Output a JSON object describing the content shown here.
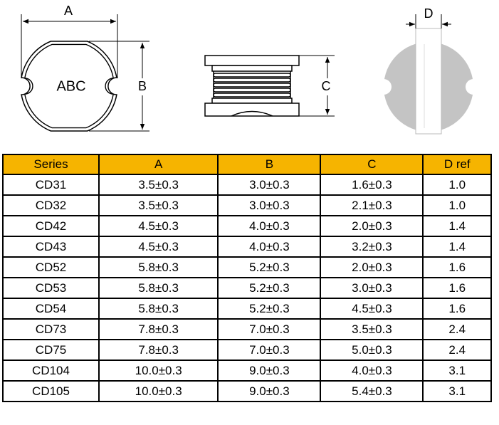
{
  "diagram": {
    "top_view": {
      "width_label": "A",
      "height_label": "B",
      "marking": "ABC"
    },
    "side_view": {
      "height_label": "C"
    },
    "bottom_view": {
      "width_label": "D"
    }
  },
  "table": {
    "header": [
      "Series",
      "A",
      "B",
      "C",
      "D ref"
    ],
    "rows": [
      [
        "CD31",
        "3.5±0.3",
        "3.0±0.3",
        "1.6±0.3",
        "1.0"
      ],
      [
        "CD32",
        "3.5±0.3",
        "3.0±0.3",
        "2.1±0.3",
        "1.0"
      ],
      [
        "CD42",
        "4.5±0.3",
        "4.0±0.3",
        "2.0±0.3",
        "1.4"
      ],
      [
        "CD43",
        "4.5±0.3",
        "4.0±0.3",
        "3.2±0.3",
        "1.4"
      ],
      [
        "CD52",
        "5.8±0.3",
        "5.2±0.3",
        "2.0±0.3",
        "1.6"
      ],
      [
        "CD53",
        "5.8±0.3",
        "5.2±0.3",
        "3.0±0.3",
        "1.6"
      ],
      [
        "CD54",
        "5.8±0.3",
        "5.2±0.3",
        "4.5±0.3",
        "1.6"
      ],
      [
        "CD73",
        "7.8±0.3",
        "7.0±0.3",
        "3.5±0.3",
        "2.4"
      ],
      [
        "CD75",
        "7.8±0.3",
        "7.0±0.3",
        "5.0±0.3",
        "2.4"
      ],
      [
        "CD104",
        "10.0±0.3",
        "9.0±0.3",
        "4.0±0.3",
        "3.1"
      ],
      [
        "CD105",
        "10.0±0.3",
        "9.0±0.3",
        "5.4±0.3",
        "3.1"
      ]
    ]
  }
}
